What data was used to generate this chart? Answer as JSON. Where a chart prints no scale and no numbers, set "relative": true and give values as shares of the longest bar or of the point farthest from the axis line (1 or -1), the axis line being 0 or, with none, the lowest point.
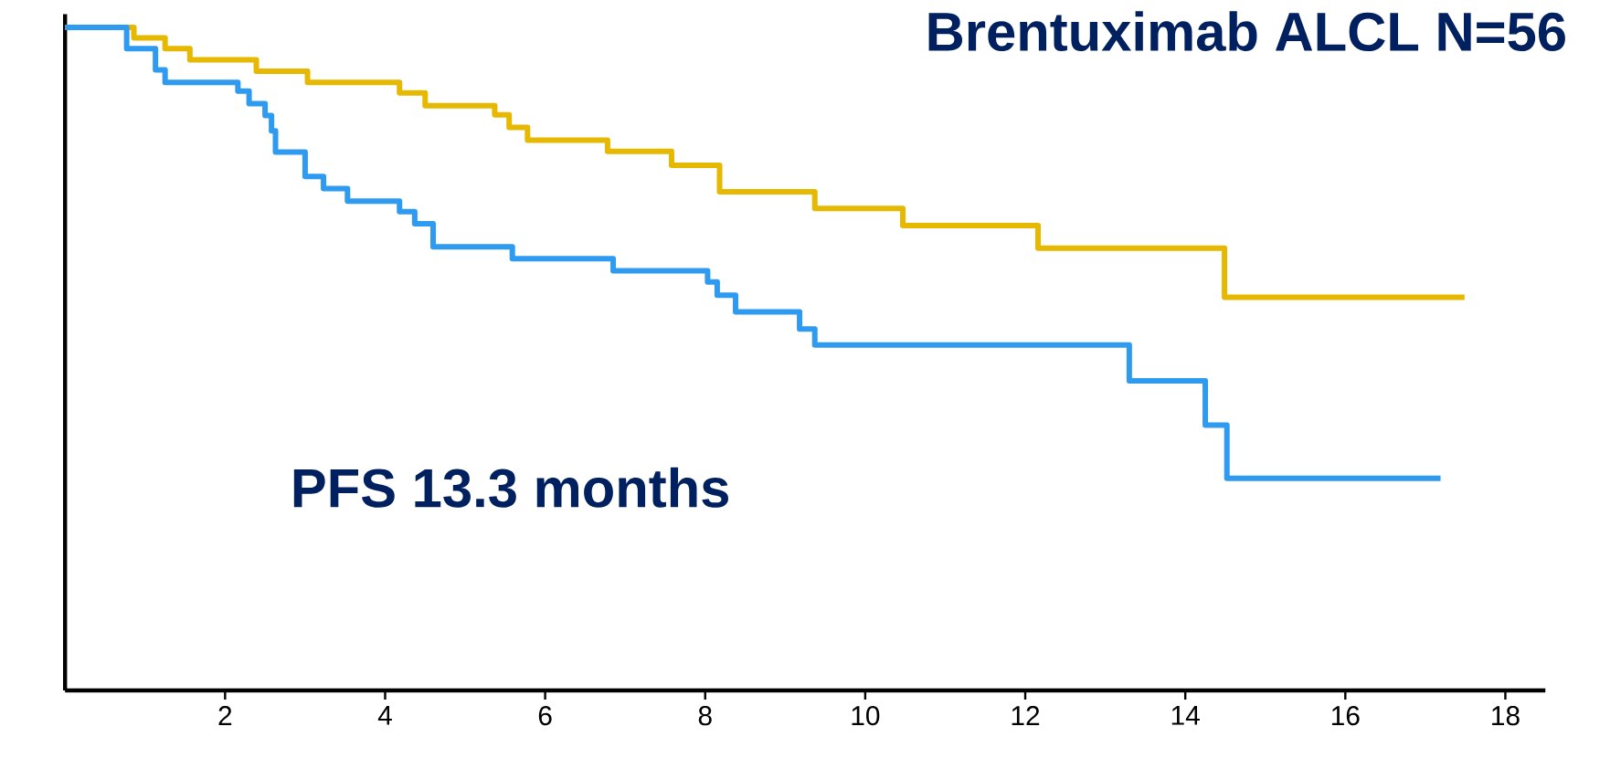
{
  "chart_data": {
    "type": "step",
    "title": "Brentuximab ALCL N=56",
    "annotations": [
      "PFS 13.3 months"
    ],
    "relative": true,
    "grid": false,
    "xlim": [
      0,
      18.5
    ],
    "xticks": [
      2,
      4,
      6,
      8,
      10,
      12,
      14,
      16,
      18
    ],
    "series": [
      {
        "color": "#e6b800",
        "x": [
          0,
          0.86,
          1.25,
          1.56,
          2.39,
          3.03,
          4.18,
          4.5,
          5.37,
          5.55,
          5.78,
          6.78,
          7.58,
          8.18,
          9.37,
          10.47,
          12.16,
          14.49,
          17.49
        ],
        "values": [
          1,
          0.984,
          0.968,
          0.951,
          0.934,
          0.917,
          0.901,
          0.882,
          0.868,
          0.849,
          0.83,
          0.813,
          0.792,
          0.752,
          0.727,
          0.701,
          0.667,
          0.593,
          0.593
        ]
      },
      {
        "color": "#2e9af0",
        "x": [
          0,
          0.77,
          1.13,
          1.25,
          2.16,
          2.3,
          2.5,
          2.58,
          2.63,
          3.0,
          3.23,
          3.53,
          4.18,
          4.37,
          4.6,
          5.59,
          6.85,
          8.03,
          8.15,
          8.38,
          9.18,
          9.37,
          13.3,
          14.25,
          14.52,
          17.19
        ],
        "values": [
          1,
          0.968,
          0.936,
          0.917,
          0.904,
          0.885,
          0.867,
          0.844,
          0.812,
          0.775,
          0.757,
          0.738,
          0.722,
          0.704,
          0.669,
          0.651,
          0.633,
          0.616,
          0.596,
          0.571,
          0.545,
          0.521,
          0.467,
          0.4,
          0.32,
          0.32
        ]
      }
    ]
  }
}
